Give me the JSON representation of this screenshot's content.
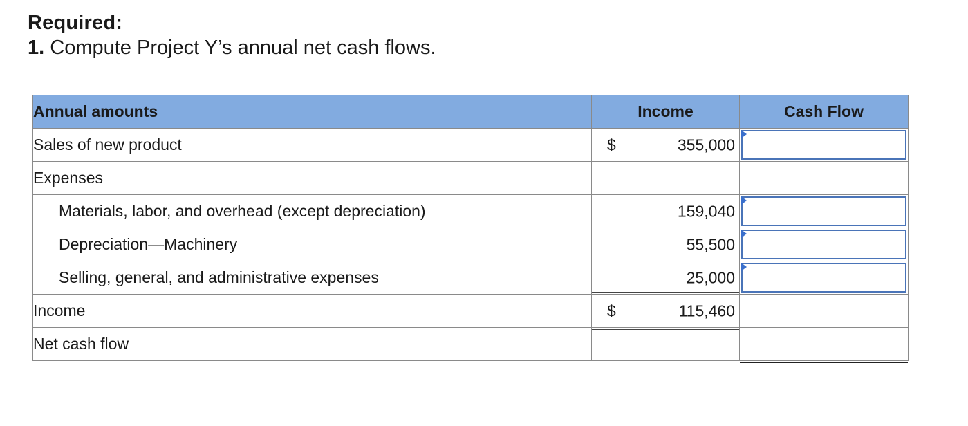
{
  "heading": "Required:",
  "question": {
    "number": "1.",
    "text": "Compute Project Y’s annual net cash flows."
  },
  "table": {
    "headers": {
      "label": "Annual amounts",
      "income": "Income",
      "cash_flow": "Cash Flow"
    },
    "rows": [
      {
        "label": "Sales of new product",
        "currency": "$",
        "income": "355,000",
        "cash_flow": ""
      },
      {
        "label": "Expenses",
        "currency": "",
        "income": "",
        "cash_flow": ""
      },
      {
        "label": "Materials, labor, and overhead (except depreciation)",
        "currency": "",
        "income": "159,040",
        "cash_flow": ""
      },
      {
        "label": "Depreciation—Machinery",
        "currency": "",
        "income": "55,500",
        "cash_flow": ""
      },
      {
        "label": "Selling, general, and administrative expenses",
        "currency": "",
        "income": "25,000",
        "cash_flow": ""
      },
      {
        "label": "Income",
        "currency": "$",
        "income": "115,460",
        "cash_flow": ""
      },
      {
        "label": "Net cash flow",
        "currency": "",
        "income": "",
        "cash_flow": ""
      }
    ]
  },
  "colors": {
    "header_bg": "#82abe0",
    "input_border": "#4a74b8",
    "input_marker": "#3a6fcc"
  }
}
